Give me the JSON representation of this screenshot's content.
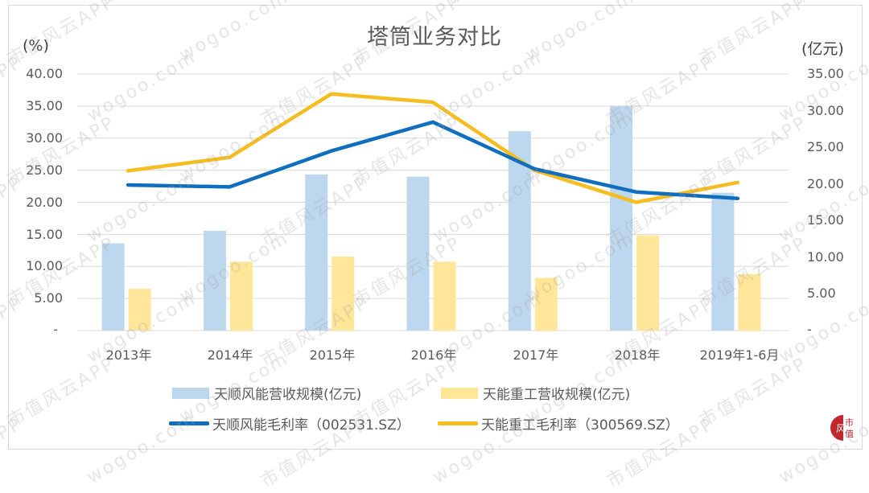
{
  "chart_data": {
    "type": "bar+line",
    "title": "塔筒业务对比",
    "categories": [
      "2013年",
      "2014年",
      "2015年",
      "2016年",
      "2017年",
      "2018年",
      "2019年1-6月"
    ],
    "y_left": {
      "label": "(%)",
      "ticks": [
        "40.00",
        "35.00",
        "30.00",
        "25.00",
        "20.00",
        "15.00",
        "10.00",
        "5.00",
        "-"
      ],
      "range": [
        0,
        40
      ]
    },
    "y_right": {
      "label": "(亿元)",
      "ticks": [
        "35.00",
        "30.00",
        "25.00",
        "20.00",
        "15.00",
        "10.00",
        "5.00",
        "-"
      ],
      "range": [
        0,
        35
      ]
    },
    "series": [
      {
        "name": "天顺风能营收规模(亿元)",
        "type": "bar",
        "axis": "right",
        "color": "#BDD7EE",
        "values": [
          11.9,
          13.6,
          21.3,
          21.0,
          27.2,
          30.6,
          18.8
        ]
      },
      {
        "name": "天能重工营收规模(亿元)",
        "type": "bar",
        "axis": "right",
        "color": "#FFE699",
        "values": [
          5.7,
          9.4,
          10.1,
          9.4,
          7.2,
          13.0,
          7.7
        ]
      },
      {
        "name": "天顺风能毛利率（002531.SZ）",
        "type": "line",
        "axis": "left",
        "color": "#0F6EBE",
        "values": [
          22.7,
          22.4,
          28.0,
          32.5,
          25.2,
          21.6,
          20.6
        ]
      },
      {
        "name": "天能重工毛利率（300569.SZ）",
        "type": "line",
        "axis": "left",
        "color": "#F5BD1F",
        "values": [
          24.9,
          27.0,
          36.9,
          35.6,
          25.0,
          20.0,
          23.1
        ]
      }
    ],
    "grid": true,
    "legend_position": "bottom"
  },
  "watermark": {
    "text_a": "市值风云APP",
    "text_b": "wogoo.com"
  },
  "logo": {
    "left_char": "风",
    "right_top": "市",
    "right_bottom": "值"
  }
}
